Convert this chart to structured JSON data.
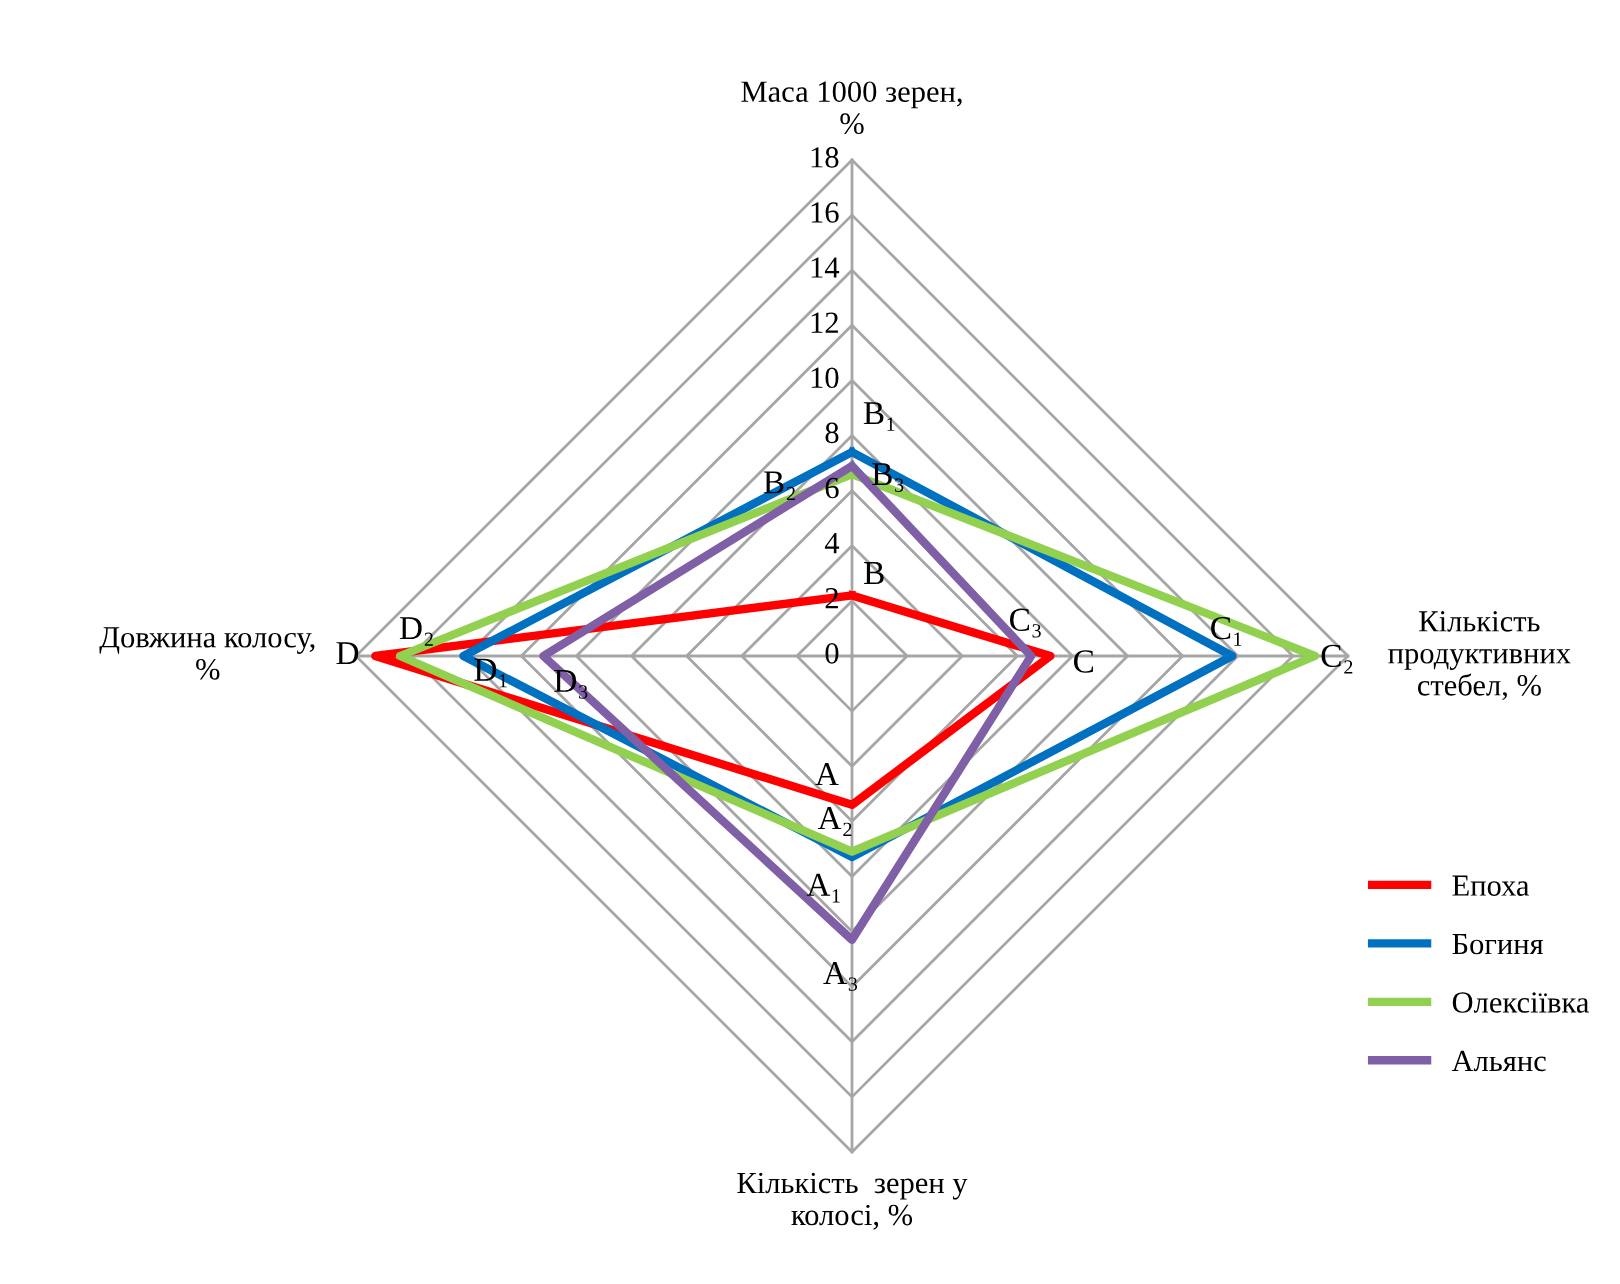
{
  "chart_data": {
    "type": "radar",
    "categories": [
      "Маса 1000 зерен,\n%",
      "Кількість\nпродуктивних\nстебел, %",
      "Кількість  зерен у\nколосі, %",
      "Довжина колосу,\n%"
    ],
    "series": [
      {
        "name": "Епоха",
        "color": "#ff0000",
        "values": [
          2.2,
          7.2,
          5.4,
          17.3
        ],
        "value_labels": [
          "B",
          "C",
          "A",
          "D"
        ]
      },
      {
        "name": "Богиня",
        "color": "#0070c0",
        "values": [
          7.4,
          13.8,
          7.3,
          14.1
        ],
        "value_labels": [
          "B₁",
          "C₁",
          "A₁",
          "D₁"
        ]
      },
      {
        "name": "Олексіївка",
        "color": "#92d050",
        "values": [
          6.6,
          16.8,
          7.1,
          16.4
        ],
        "value_labels": [
          "B₂",
          "C₂",
          "A₂",
          "D₂"
        ]
      },
      {
        "name": "Альянс",
        "color": "#7f5fa5",
        "values": [
          6.9,
          6.5,
          10.3,
          11.2
        ],
        "value_labels": [
          "B₃",
          "C₃",
          "A₃",
          "D₃"
        ]
      }
    ],
    "ylim": [
      0,
      18
    ],
    "yticks": [
      0,
      2,
      4,
      6,
      8,
      10,
      12,
      14,
      16,
      18
    ],
    "grid": true,
    "legend": "right",
    "marker": "none",
    "line_style": "solid"
  }
}
